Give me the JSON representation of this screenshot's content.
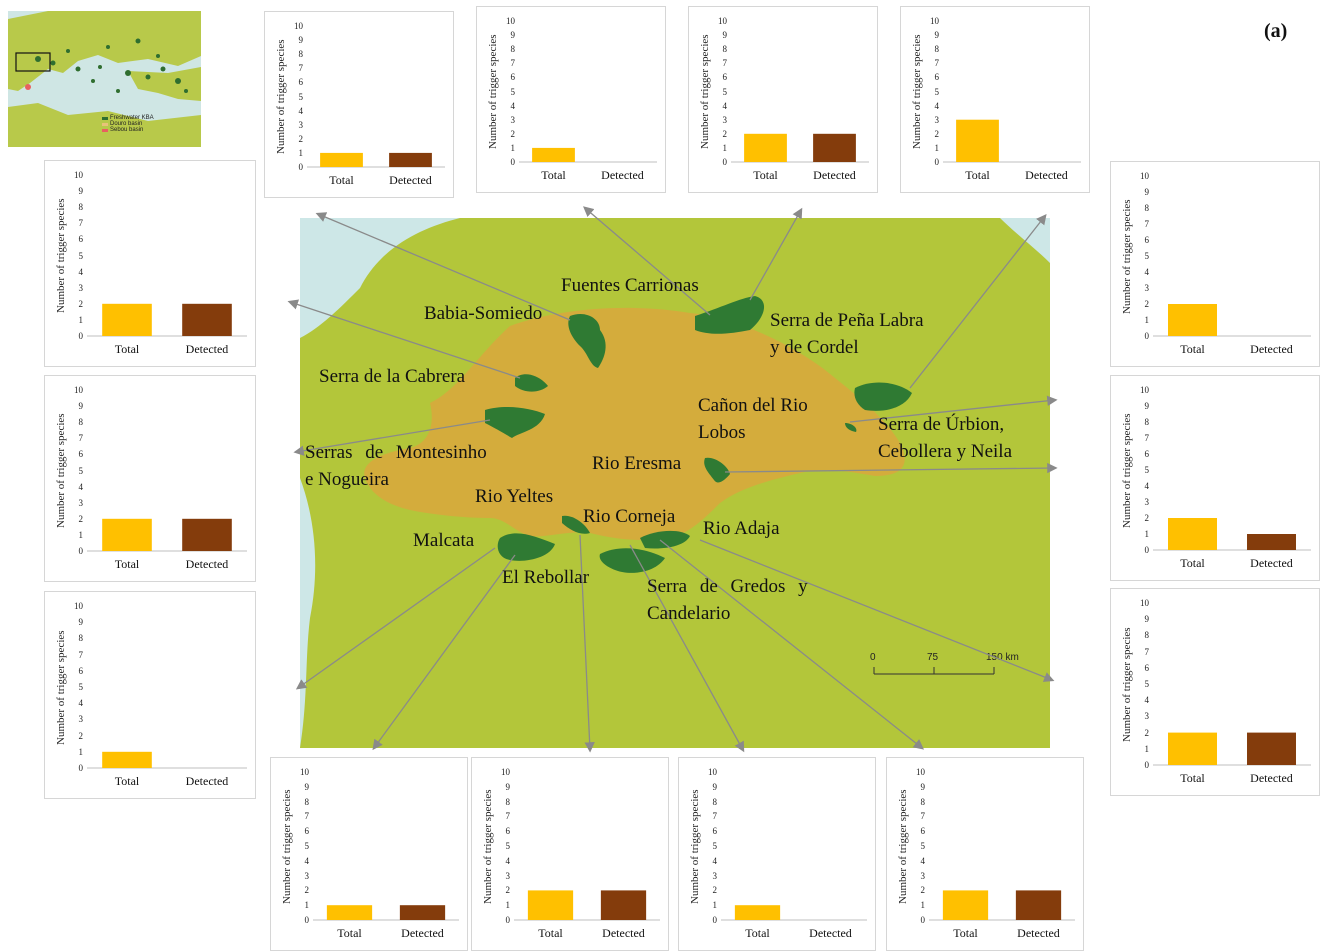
{
  "panel_tag": "(a)",
  "colors": {
    "sea": "#cde7e7",
    "land": "#b3c63a",
    "basin": "#d4ac3c",
    "kba": "#2f7a33",
    "total": "#ffc000",
    "detected": "#843c0c",
    "arrow": "#8a8a8a"
  },
  "site_labels": [
    {
      "text": "Fuentes Carrionas"
    },
    {
      "text": "Babia-Somiedo"
    },
    {
      "text": "Serra de Peña Labra"
    },
    {
      "text": "y de Cordel"
    },
    {
      "text": "Serra de la Cabrera"
    },
    {
      "text": "Cañon del Rio"
    },
    {
      "text": "Lobos"
    },
    {
      "text": "Serra de Úrbion,"
    },
    {
      "text": "Cebollera y Neila"
    },
    {
      "text": "Serras de Montesinho"
    },
    {
      "text": "e Nogueira"
    },
    {
      "text": "Rio Eresma"
    },
    {
      "text": "Rio Yeltes"
    },
    {
      "text": "Rio Corneja"
    },
    {
      "text": "Rio Adaja"
    },
    {
      "text": "Malcata"
    },
    {
      "text": "El Rebollar"
    },
    {
      "text": "Serra de Gredos y"
    },
    {
      "text": "Candelario"
    }
  ],
  "scale_bar": {
    "ticks": [
      "0",
      "75",
      "150 km"
    ]
  },
  "inset_legend": [
    "Freshwater KBA",
    "Douro basin",
    "Sebou basin"
  ],
  "chart_data": [
    {
      "type": "bar",
      "categories": [
        "Total",
        "Detected"
      ],
      "values": [
        1,
        1
      ],
      "ylabel": "Number of trigger species",
      "ylim": [
        0,
        10
      ],
      "yticks": [
        "0",
        "1",
        "2",
        "3",
        "4",
        "5",
        "6",
        "7",
        "8",
        "9",
        "10"
      ]
    },
    {
      "type": "bar",
      "categories": [
        "Total",
        "Detected"
      ],
      "values": [
        1,
        0
      ],
      "ylabel": "Number of trigger species",
      "ylim": [
        0,
        10
      ],
      "yticks": [
        "0",
        "1",
        "2",
        "3",
        "4",
        "5",
        "6",
        "7",
        "8",
        "9",
        "10"
      ]
    },
    {
      "type": "bar",
      "categories": [
        "Total",
        "Detected"
      ],
      "values": [
        2,
        2
      ],
      "ylabel": "Number of trigger species",
      "ylim": [
        0,
        10
      ],
      "yticks": [
        "0",
        "1",
        "2",
        "3",
        "4",
        "5",
        "6",
        "7",
        "8",
        "9",
        "10"
      ]
    },
    {
      "type": "bar",
      "categories": [
        "Total",
        "Detected"
      ],
      "values": [
        3,
        0
      ],
      "ylabel": "Number of trigger species",
      "ylim": [
        0,
        10
      ],
      "yticks": [
        "0",
        "1",
        "2",
        "3",
        "4",
        "5",
        "6",
        "7",
        "8",
        "9",
        "10"
      ]
    },
    {
      "type": "bar",
      "categories": [
        "Total",
        "Detected"
      ],
      "values": [
        2,
        2
      ],
      "ylabel": "Number of trigger species",
      "ylim": [
        0,
        10
      ],
      "yticks": [
        "0",
        "1",
        "2",
        "3",
        "4",
        "5",
        "6",
        "7",
        "8",
        "9",
        "10"
      ]
    },
    {
      "type": "bar",
      "categories": [
        "Total",
        "Detected"
      ],
      "values": [
        2,
        2
      ],
      "ylabel": "Number of trigger species",
      "ylim": [
        0,
        10
      ],
      "yticks": [
        "0",
        "1",
        "2",
        "3",
        "4",
        "5",
        "6",
        "7",
        "8",
        "9",
        "10"
      ]
    },
    {
      "type": "bar",
      "categories": [
        "Total",
        "Detected"
      ],
      "values": [
        1,
        0
      ],
      "ylabel": "Number of trigger species",
      "ylim": [
        0,
        10
      ],
      "yticks": [
        "0",
        "1",
        "2",
        "3",
        "4",
        "5",
        "6",
        "7",
        "8",
        "9",
        "10"
      ]
    },
    {
      "type": "bar",
      "categories": [
        "Total",
        "Detected"
      ],
      "values": [
        2,
        0
      ],
      "ylabel": "Number of trigger species",
      "ylim": [
        0,
        10
      ],
      "yticks": [
        "0",
        "1",
        "2",
        "3",
        "4",
        "5",
        "6",
        "7",
        "8",
        "9",
        "10"
      ]
    },
    {
      "type": "bar",
      "categories": [
        "Total",
        "Detected"
      ],
      "values": [
        2,
        1
      ],
      "ylabel": "Number of trigger species",
      "ylim": [
        0,
        10
      ],
      "yticks": [
        "0",
        "1",
        "2",
        "3",
        "4",
        "5",
        "6",
        "7",
        "8",
        "9",
        "10"
      ]
    },
    {
      "type": "bar",
      "categories": [
        "Total",
        "Detected"
      ],
      "values": [
        2,
        2
      ],
      "ylabel": "Number of trigger species",
      "ylim": [
        0,
        10
      ],
      "yticks": [
        "0",
        "1",
        "2",
        "3",
        "4",
        "5",
        "6",
        "7",
        "8",
        "9",
        "10"
      ]
    },
    {
      "type": "bar",
      "categories": [
        "Total",
        "Detected"
      ],
      "values": [
        1,
        1
      ],
      "ylabel": "Number of trigger species",
      "ylim": [
        0,
        10
      ],
      "yticks": [
        "0",
        "1",
        "2",
        "3",
        "4",
        "5",
        "6",
        "7",
        "8",
        "9",
        "10"
      ]
    },
    {
      "type": "bar",
      "categories": [
        "Total",
        "Detected"
      ],
      "values": [
        2,
        2
      ],
      "ylabel": "Number of trigger species",
      "ylim": [
        0,
        10
      ],
      "yticks": [
        "0",
        "1",
        "2",
        "3",
        "4",
        "5",
        "6",
        "7",
        "8",
        "9",
        "10"
      ]
    },
    {
      "type": "bar",
      "categories": [
        "Total",
        "Detected"
      ],
      "values": [
        1,
        0
      ],
      "ylabel": "Number of trigger species",
      "ylim": [
        0,
        10
      ],
      "yticks": [
        "0",
        "1",
        "2",
        "3",
        "4",
        "5",
        "6",
        "7",
        "8",
        "9",
        "10"
      ]
    },
    {
      "type": "bar",
      "categories": [
        "Total",
        "Detected"
      ],
      "values": [
        2,
        2
      ],
      "ylabel": "Number of trigger species",
      "ylim": [
        0,
        10
      ],
      "yticks": [
        "0",
        "1",
        "2",
        "3",
        "4",
        "5",
        "6",
        "7",
        "8",
        "9",
        "10"
      ]
    }
  ]
}
